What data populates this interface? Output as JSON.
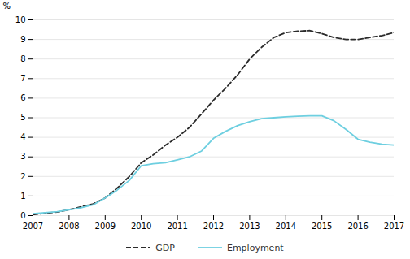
{
  "chart_data": {
    "type": "line",
    "ylabel": "%",
    "x": [
      2007,
      2007.33,
      2007.67,
      2008,
      2008.33,
      2008.67,
      2009,
      2009.33,
      2009.67,
      2010,
      2010.33,
      2010.67,
      2011,
      2011.33,
      2011.67,
      2012,
      2012.33,
      2012.67,
      2013,
      2013.33,
      2013.67,
      2014,
      2014.33,
      2014.67,
      2015,
      2015.33,
      2015.67,
      2016,
      2016.33,
      2016.67,
      2017
    ],
    "series": [
      {
        "name": "GDP",
        "color": "#2b2b2b",
        "line_style": "dashed",
        "values": [
          0.05,
          0.12,
          0.18,
          0.3,
          0.45,
          0.6,
          0.9,
          1.4,
          2.0,
          2.7,
          3.1,
          3.6,
          4.0,
          4.5,
          5.2,
          5.9,
          6.5,
          7.2,
          8.0,
          8.6,
          9.1,
          9.35,
          9.42,
          9.45,
          9.3,
          9.1,
          9.0,
          9.0,
          9.1,
          9.2,
          9.35
        ]
      },
      {
        "name": "Employment",
        "color": "#6ecfe0",
        "line_style": "solid",
        "values": [
          0.1,
          0.15,
          0.2,
          0.3,
          0.4,
          0.55,
          0.9,
          1.3,
          1.8,
          2.55,
          2.65,
          2.7,
          2.85,
          3.0,
          3.3,
          3.95,
          4.3,
          4.6,
          4.8,
          4.95,
          5.0,
          5.05,
          5.08,
          5.1,
          5.1,
          4.85,
          4.4,
          3.9,
          3.75,
          3.65,
          3.6
        ]
      }
    ],
    "xlim": [
      2007,
      2017
    ],
    "xticks": [
      2007,
      2008,
      2009,
      2010,
      2011,
      2012,
      2013,
      2014,
      2015,
      2016,
      2017
    ],
    "ylim": [
      0,
      10
    ],
    "yticks": [
      0,
      1,
      2,
      3,
      4,
      5,
      6,
      7,
      8,
      9,
      10
    ],
    "grid": true,
    "legend": "bottom"
  }
}
